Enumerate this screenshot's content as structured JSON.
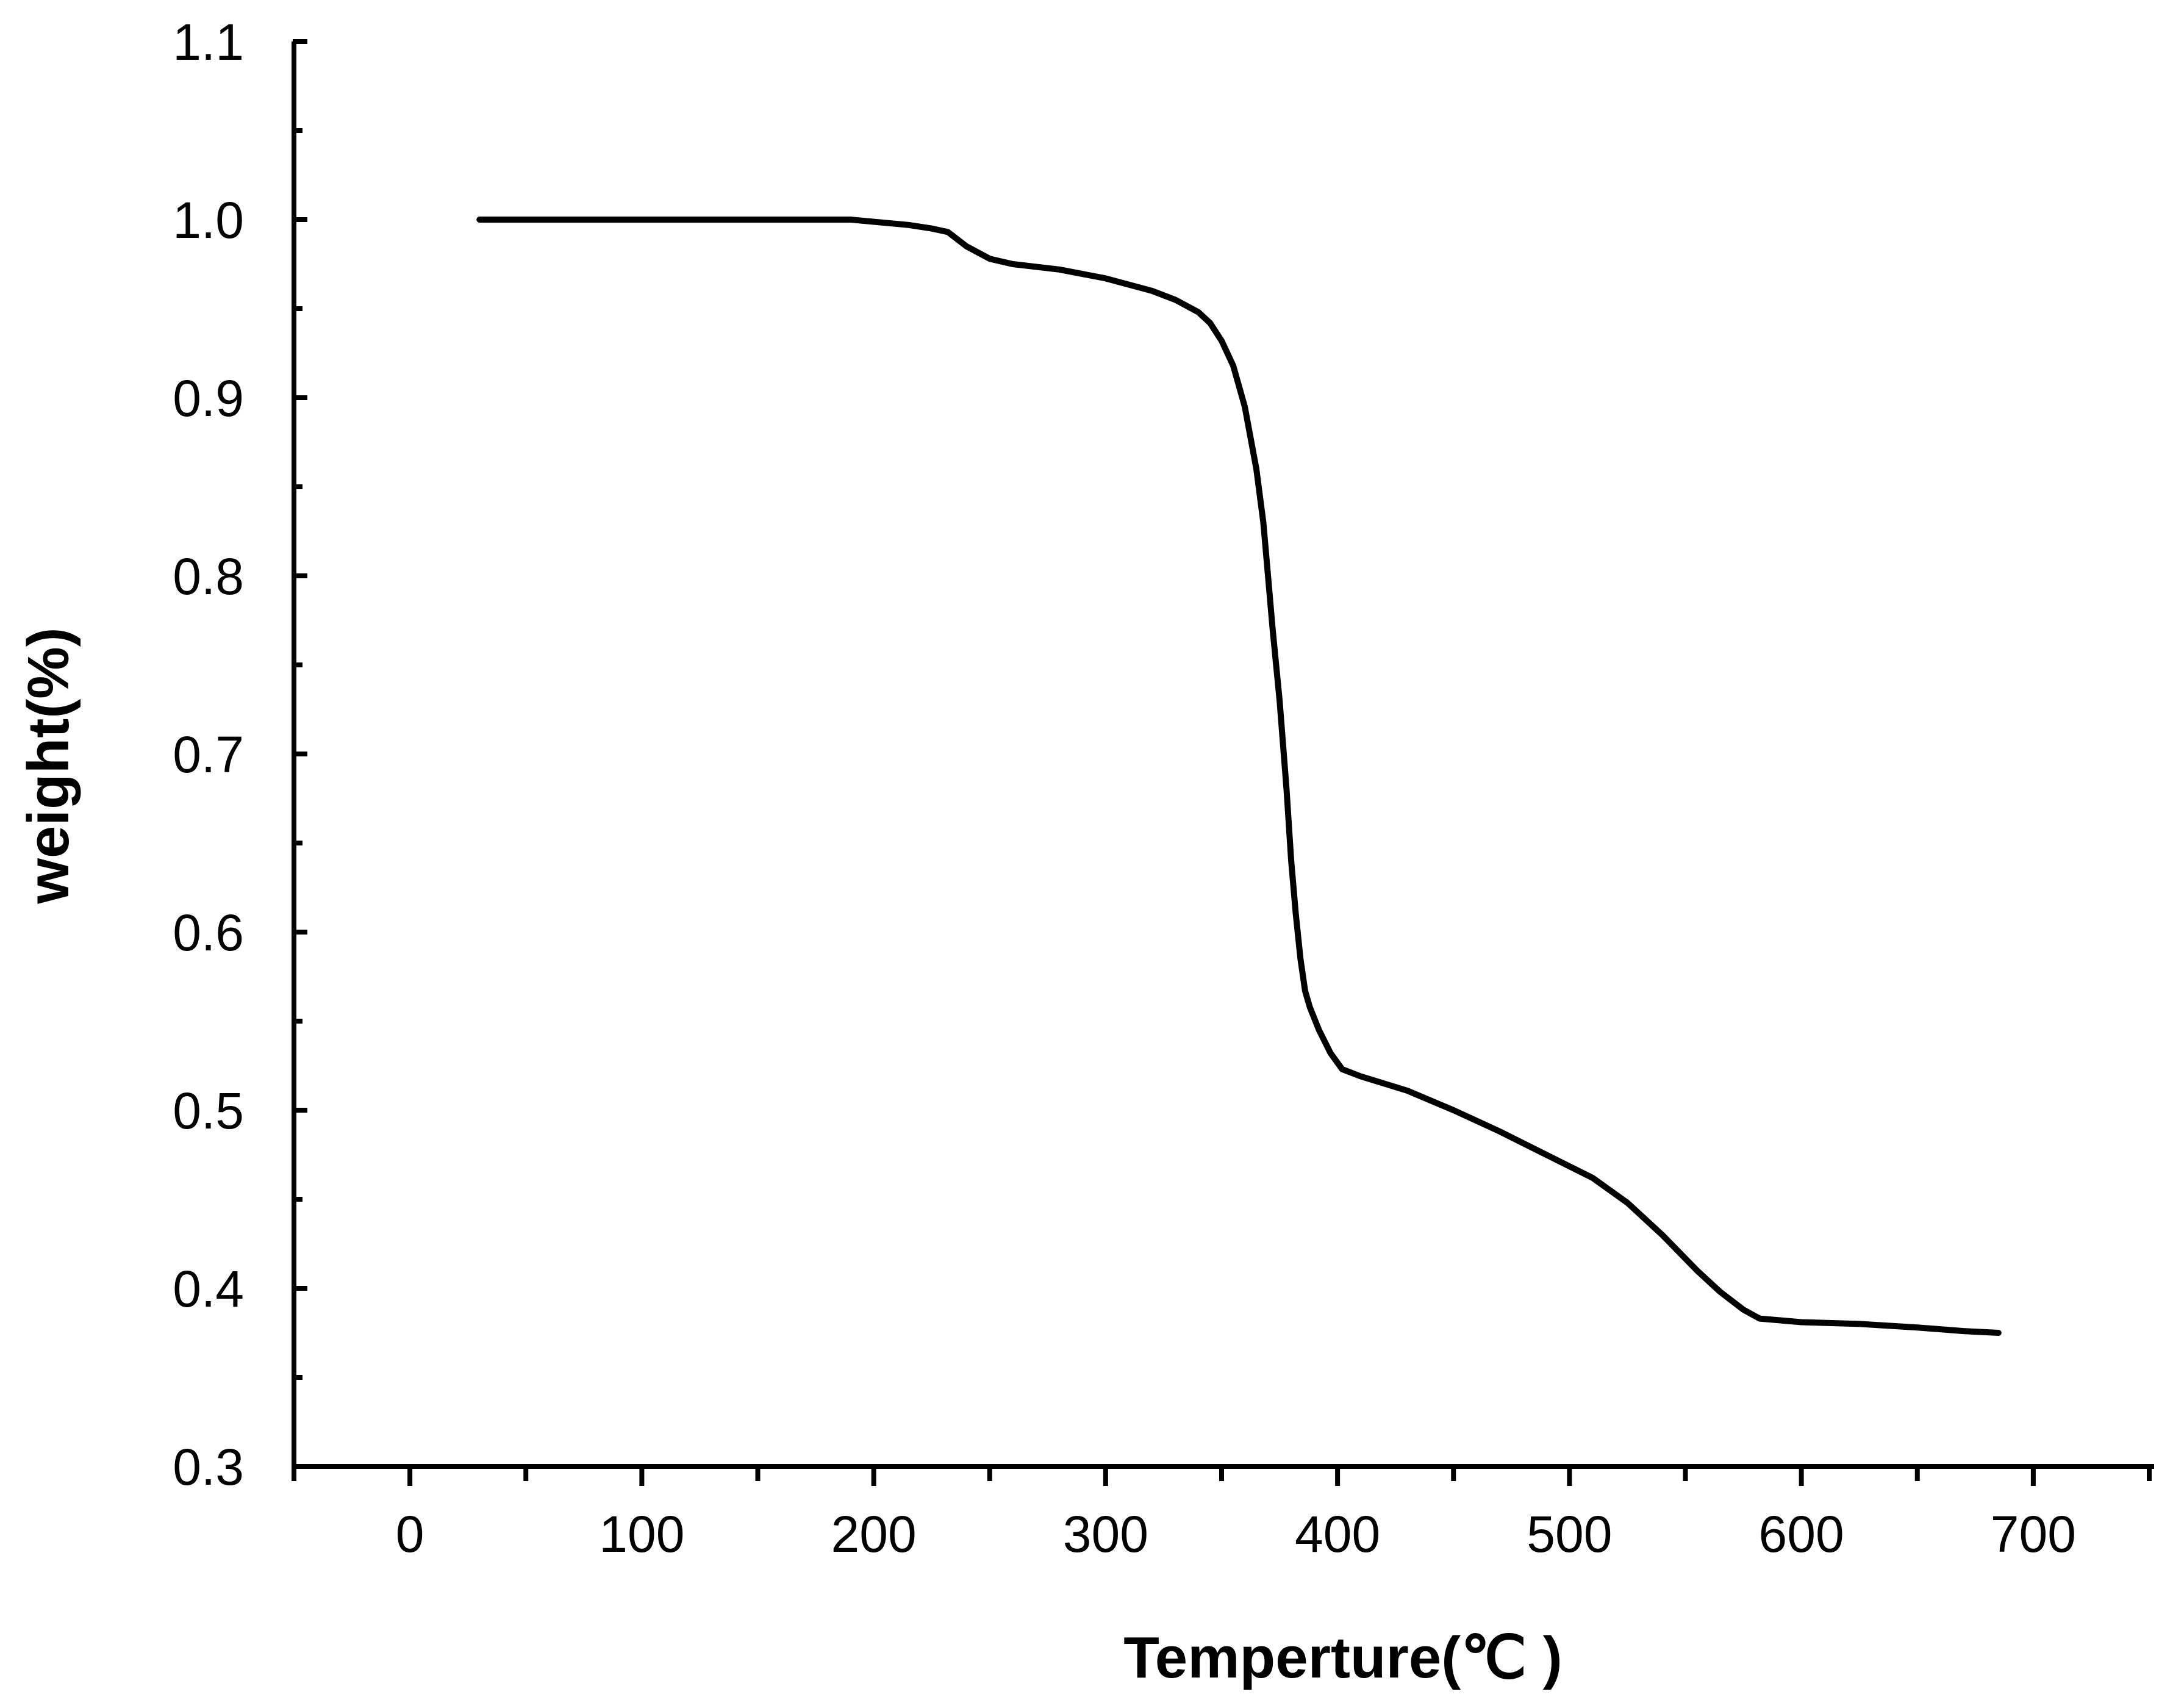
{
  "chart_data": {
    "type": "line",
    "title": "",
    "xlabel": "Temperture(℃ )",
    "ylabel": "weight(%)",
    "xlim": [
      -50,
      750
    ],
    "ylim": [
      0.3,
      1.1
    ],
    "x_ticks": [
      0,
      100,
      200,
      300,
      400,
      500,
      600,
      700
    ],
    "x_tick_labels": [
      "0",
      "100",
      "200",
      "300",
      "400",
      "500",
      "600",
      "700"
    ],
    "y_ticks": [
      0.3,
      0.4,
      0.5,
      0.6,
      0.7,
      0.8,
      0.9,
      1.0,
      1.1
    ],
    "y_tick_labels": [
      "0.3",
      "0.4",
      "0.5",
      "0.6",
      "0.7",
      "0.8",
      "0.9",
      "1.0",
      "1.1"
    ],
    "grid": false,
    "legend": false,
    "line_color": "#000000",
    "series": [
      {
        "x": [
          30,
          100,
          190,
          215,
          225,
          232,
          240,
          250,
          260,
          280,
          300,
          320,
          330,
          340,
          345,
          350,
          355,
          360,
          365,
          368,
          370,
          372,
          375,
          378,
          380,
          382,
          384,
          386,
          388,
          392,
          397,
          402,
          410,
          430,
          450,
          470,
          490,
          510,
          525,
          540,
          555,
          565,
          575,
          582,
          600,
          625,
          650,
          670,
          685
        ],
        "y": [
          1.0,
          1.0,
          1.0,
          0.997,
          0.995,
          0.993,
          0.985,
          0.978,
          0.975,
          0.972,
          0.967,
          0.96,
          0.955,
          0.948,
          0.942,
          0.932,
          0.918,
          0.895,
          0.86,
          0.83,
          0.8,
          0.77,
          0.73,
          0.68,
          0.64,
          0.61,
          0.585,
          0.567,
          0.558,
          0.545,
          0.532,
          0.523,
          0.519,
          0.511,
          0.5,
          0.488,
          0.475,
          0.462,
          0.448,
          0.43,
          0.41,
          0.398,
          0.388,
          0.383,
          0.381,
          0.38,
          0.378,
          0.376,
          0.375
        ]
      }
    ]
  }
}
